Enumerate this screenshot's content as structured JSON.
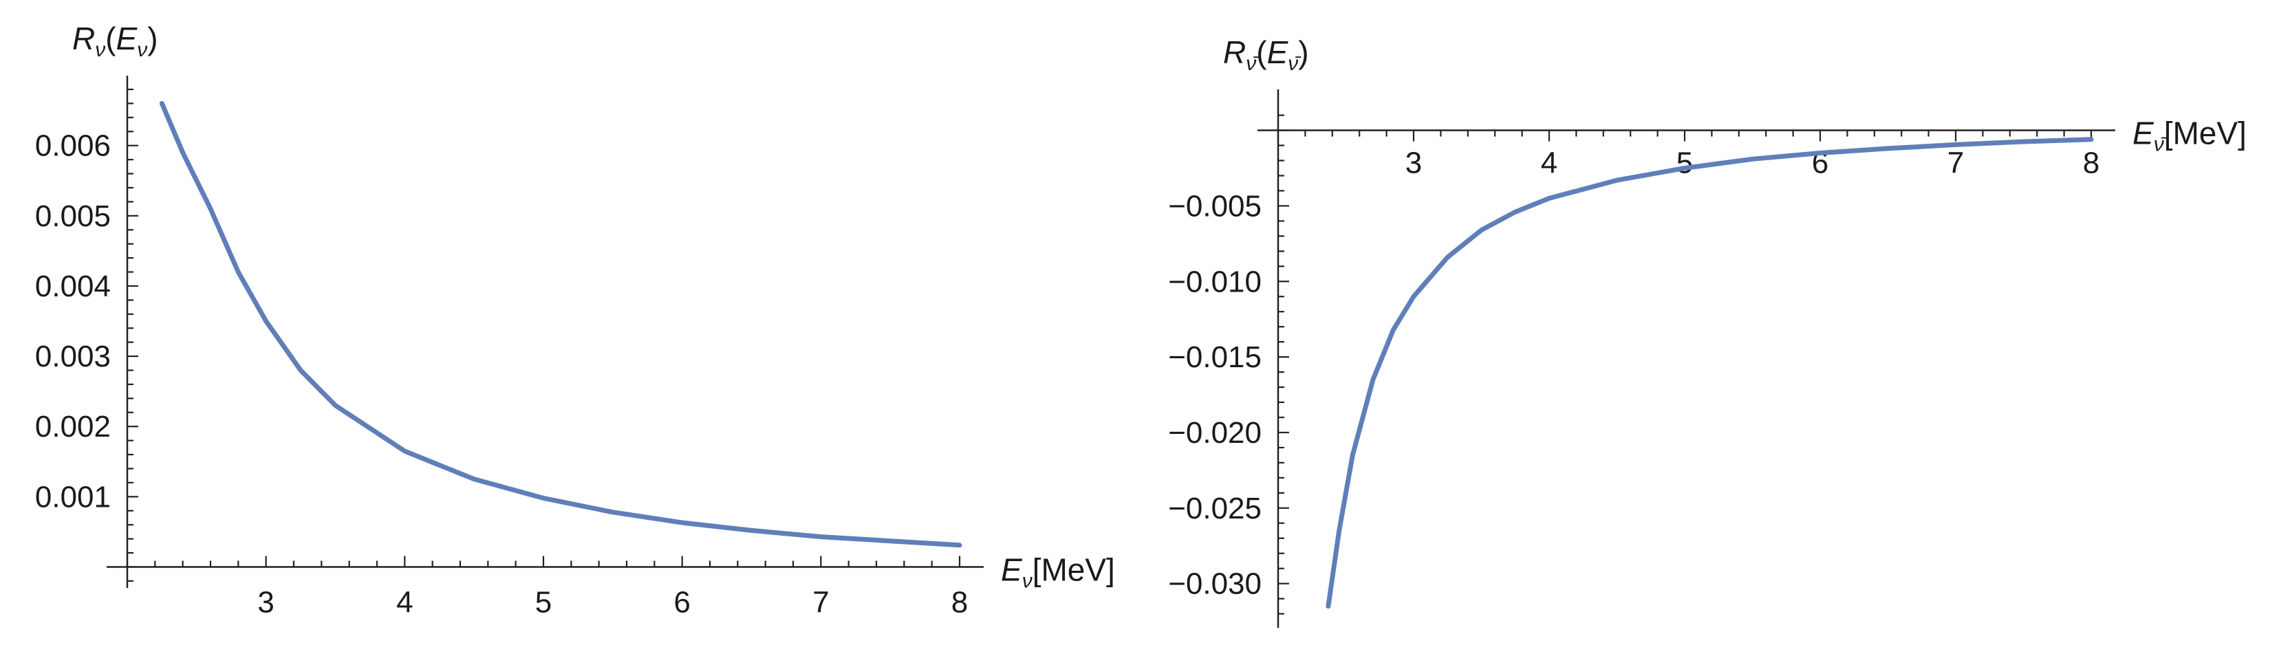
{
  "chart_data": [
    {
      "type": "line",
      "title": "",
      "ylabel": {
        "main": "R",
        "sub": "ν",
        "arg": "E",
        "argsub": "ν"
      },
      "xlabel": {
        "main": "E",
        "sub": "ν",
        "unit": "[MeV]"
      },
      "x_ticks": [
        "3",
        "4",
        "5",
        "6",
        "7",
        "8"
      ],
      "y_ticks": [
        "0.001",
        "0.002",
        "0.003",
        "0.004",
        "0.005",
        "0.006"
      ],
      "xlim": [
        2.0,
        8.0
      ],
      "ylim": [
        -0.00025,
        0.0068
      ],
      "grid": false,
      "legend": "none",
      "color": "#5f7fb9",
      "series": [
        {
          "x": [
            2.25,
            2.4,
            2.6,
            2.8,
            3.0,
            3.25,
            3.5,
            4.0,
            4.5,
            5.0,
            5.5,
            6.0,
            6.5,
            7.0,
            7.5,
            8.0
          ],
          "y": [
            0.0066,
            0.0059,
            0.0051,
            0.0042,
            0.0035,
            0.0028,
            0.0023,
            0.00165,
            0.00125,
            0.00098,
            0.00078,
            0.00063,
            0.00052,
            0.00043,
            0.00037,
            0.00031
          ]
        }
      ]
    },
    {
      "type": "line",
      "title": "",
      "ylabel": {
        "main": "R",
        "sub": "ν̄",
        "arg": "E",
        "argsub": "ν̄"
      },
      "xlabel": {
        "main": "E",
        "sub": "ν̄",
        "unit": "[MeV]"
      },
      "x_ticks": [
        "3",
        "4",
        "5",
        "6",
        "7",
        "8"
      ],
      "y_ticks": [
        "−0.005",
        "−0.010",
        "−0.015",
        "−0.020",
        "−0.025",
        "−0.030"
      ],
      "xlim": [
        2.0,
        8.0
      ],
      "ylim": [
        -0.0327,
        0.0018
      ],
      "grid": false,
      "legend": "none",
      "color": "#5f7fb9",
      "series": [
        {
          "x": [
            2.37,
            2.45,
            2.55,
            2.7,
            2.85,
            3.0,
            3.25,
            3.5,
            3.75,
            4.0,
            4.5,
            5.0,
            5.5,
            6.0,
            6.5,
            7.0,
            7.5,
            8.0
          ],
          "y": [
            -0.0315,
            -0.0265,
            -0.0215,
            -0.0165,
            -0.0132,
            -0.011,
            -0.0084,
            -0.0066,
            -0.0054,
            -0.0045,
            -0.0033,
            -0.0025,
            -0.0019,
            -0.0015,
            -0.0012,
            -0.00095,
            -0.00075,
            -0.0006
          ]
        }
      ]
    }
  ]
}
